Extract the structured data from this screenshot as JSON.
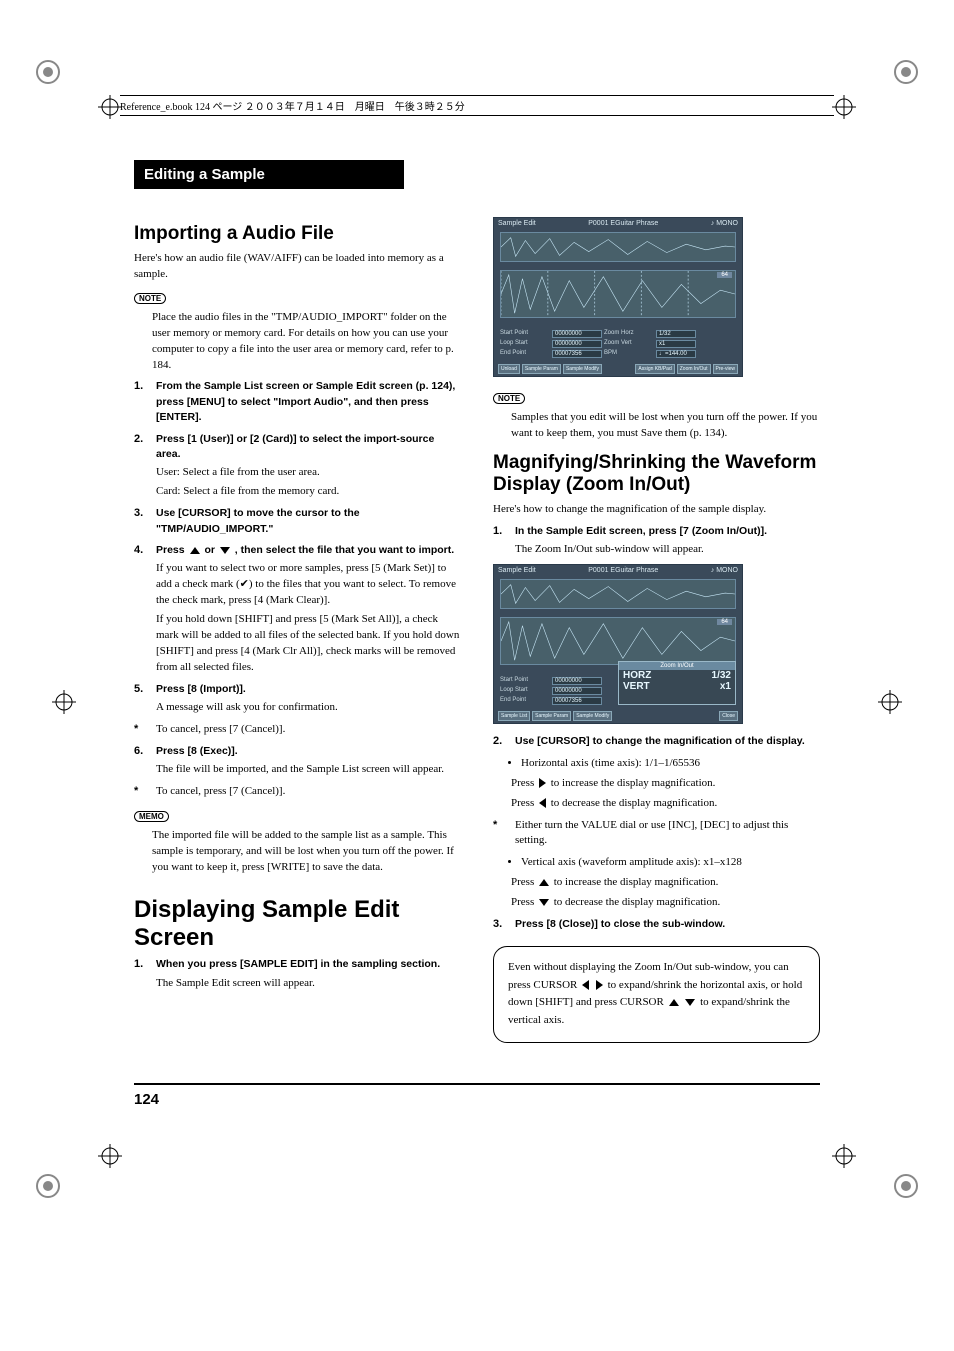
{
  "header_text": "Reference_e.book 124 ページ ２００３年７月１４日　月曜日　午後３時２５分",
  "section_title": "Editing a Sample",
  "page_number": "124",
  "left": {
    "h_import": "Importing a Audio File",
    "p_import_intro": "Here's how an audio file (WAV/AIFF) can be loaded into memory as a sample.",
    "note_label": "NOTE",
    "p_note": "Place the audio files in the \"TMP/AUDIO_IMPORT\" folder on the user memory or memory card. For details on how you can use your computer to copy a file into the user area or memory card, refer to p. 184.",
    "steps": [
      {
        "n": "1.",
        "head": "From the Sample List screen or Sample Edit screen (p. 124), press [MENU] to select \"Import Audio\", and then press [ENTER]."
      },
      {
        "n": "2.",
        "head": "Press [1 (User)] or [2 (Card)] to select the import-source area.",
        "sub": "User: Select a file from the user area.\nCard: Select a file from the memory card."
      },
      {
        "n": "3.",
        "head": "Use [CURSOR] to move the cursor to the \"TMP/AUDIO_IMPORT.\""
      },
      {
        "n": "4.",
        "head": "Press __UP__ or __DOWN__ , then select the file that you want to import.",
        "sub": "If you want to select two or more samples, press [5 (Mark Set)] to add a check mark (✔) to the files that you want to select. To remove the check mark, press [4 (Mark Clear)].\nIf you hold down [SHIFT] and press [5 (Mark Set All)], a check mark will be added to all files of the selected bank. If you hold down [SHIFT] and press [4 (Mark Clr All)], check marks will be removed from all selected files."
      },
      {
        "n": "5.",
        "head": "Press [8 (Import)].",
        "sub": "A message will ask you for confirmation."
      },
      {
        "n": "*",
        "head": "To cancel, press [7 (Cancel)].",
        "italic": true
      },
      {
        "n": "6.",
        "head": "Press [8 (Exec)].",
        "sub": "The file will be imported, and the Sample List screen will appear."
      },
      {
        "n": "*",
        "head": "To cancel, press [7 (Cancel)].",
        "italic": true
      }
    ],
    "memo_label": "MEMO",
    "p_memo": "The imported file will be added to the sample list as a sample. This sample is temporary, and will be lost when you turn off the power. If you want to keep it, press [WRITE] to save the data.",
    "h_display": "Displaying Sample Edit Screen",
    "step_display": {
      "n": "1.",
      "head": "When you press [SAMPLE EDIT] in the sampling section.",
      "sub": "The Sample Edit screen will appear."
    }
  },
  "right": {
    "note_label": "NOTE",
    "p_note": "Samples that you edit will be lost when you turn off the power. If you want to keep them, you must Save them (p. 134).",
    "h_zoom": "Magnifying/Shrinking the Waveform Display (Zoom In/Out)",
    "p_zoom_intro": "Here's how to change the magnification of the sample display.",
    "step1": {
      "n": "1.",
      "head": "In the Sample Edit screen, press [7 (Zoom In/Out)].",
      "sub": "The Zoom In/Out sub-window will appear."
    },
    "step2": {
      "n": "2.",
      "head": "Use [CURSOR] to change the magnification of the display."
    },
    "bullets2a": "Horizontal axis (time axis): 1/1–1/65536",
    "b2a_inc": "Press __RIGHT__ to increase the display magnification.",
    "b2a_dec": "Press __LEFT__ to decrease the display magnification.",
    "star2": "Either turn the VALUE dial or use [INC], [DEC] to adjust this setting.",
    "bullets2b": "Vertical axis (waveform amplitude axis): x1–x128",
    "b2b_inc": "Press __UP__ to increase the display magnification.",
    "b2b_dec": "Press __DOWN__ to decrease the display magnification.",
    "step3": {
      "n": "3.",
      "head": "Press [8 (Close)] to close the sub-window."
    },
    "tip": "Even without displaying the Zoom In/Out sub-window, you can press CURSOR __LEFT__ __RIGHT__ to expand/shrink the horizontal axis, or hold down [SHIFT] and press CURSOR __UP__ __DOWN__ to expand/shrink the vertical axis."
  },
  "screenshot": {
    "title_left": "Sample Edit",
    "title_mid": "P0001 EGuitar Phrase",
    "title_right": "♪ MONO",
    "badge": "64",
    "params": {
      "r1l": "Start Point",
      "r1v": "00000000",
      "r1r": "Zoom Horz",
      "r1x": "1/32",
      "r2l": "Loop Start",
      "r2v": "00000000",
      "r2r": "Zoom Vert",
      "r2x": "x1",
      "r3l": "End Point",
      "r3v": "00007356",
      "r3r": "BPM",
      "r3x": "♩=144.00"
    },
    "fkeys1": [
      "Unload",
      "Sample Param",
      "Sample Modify",
      "",
      "",
      "",
      "Assign KB/Pad",
      "Zoom In/Out",
      "Pre-view"
    ],
    "zoom": {
      "title": "Zoom In/Out",
      "horz_l": "HORZ",
      "horz_r": "1/32",
      "vert_l": "VERT",
      "vert_r": "x1"
    },
    "fkeys2": [
      "Sample List",
      "Sample Param",
      "Sample Modify",
      "",
      "",
      "",
      "",
      "",
      "Close"
    ],
    "params2": {
      "r1l": "Start Point",
      "r1v": "00000000",
      "r2l": "Loop Start",
      "r2v": "00000000",
      "r3l": "End Point",
      "r3v": "00007356"
    }
  },
  "colors": {
    "screenshot_bg": "#3a4a5a",
    "screenshot_border": "#2a3a4a"
  }
}
